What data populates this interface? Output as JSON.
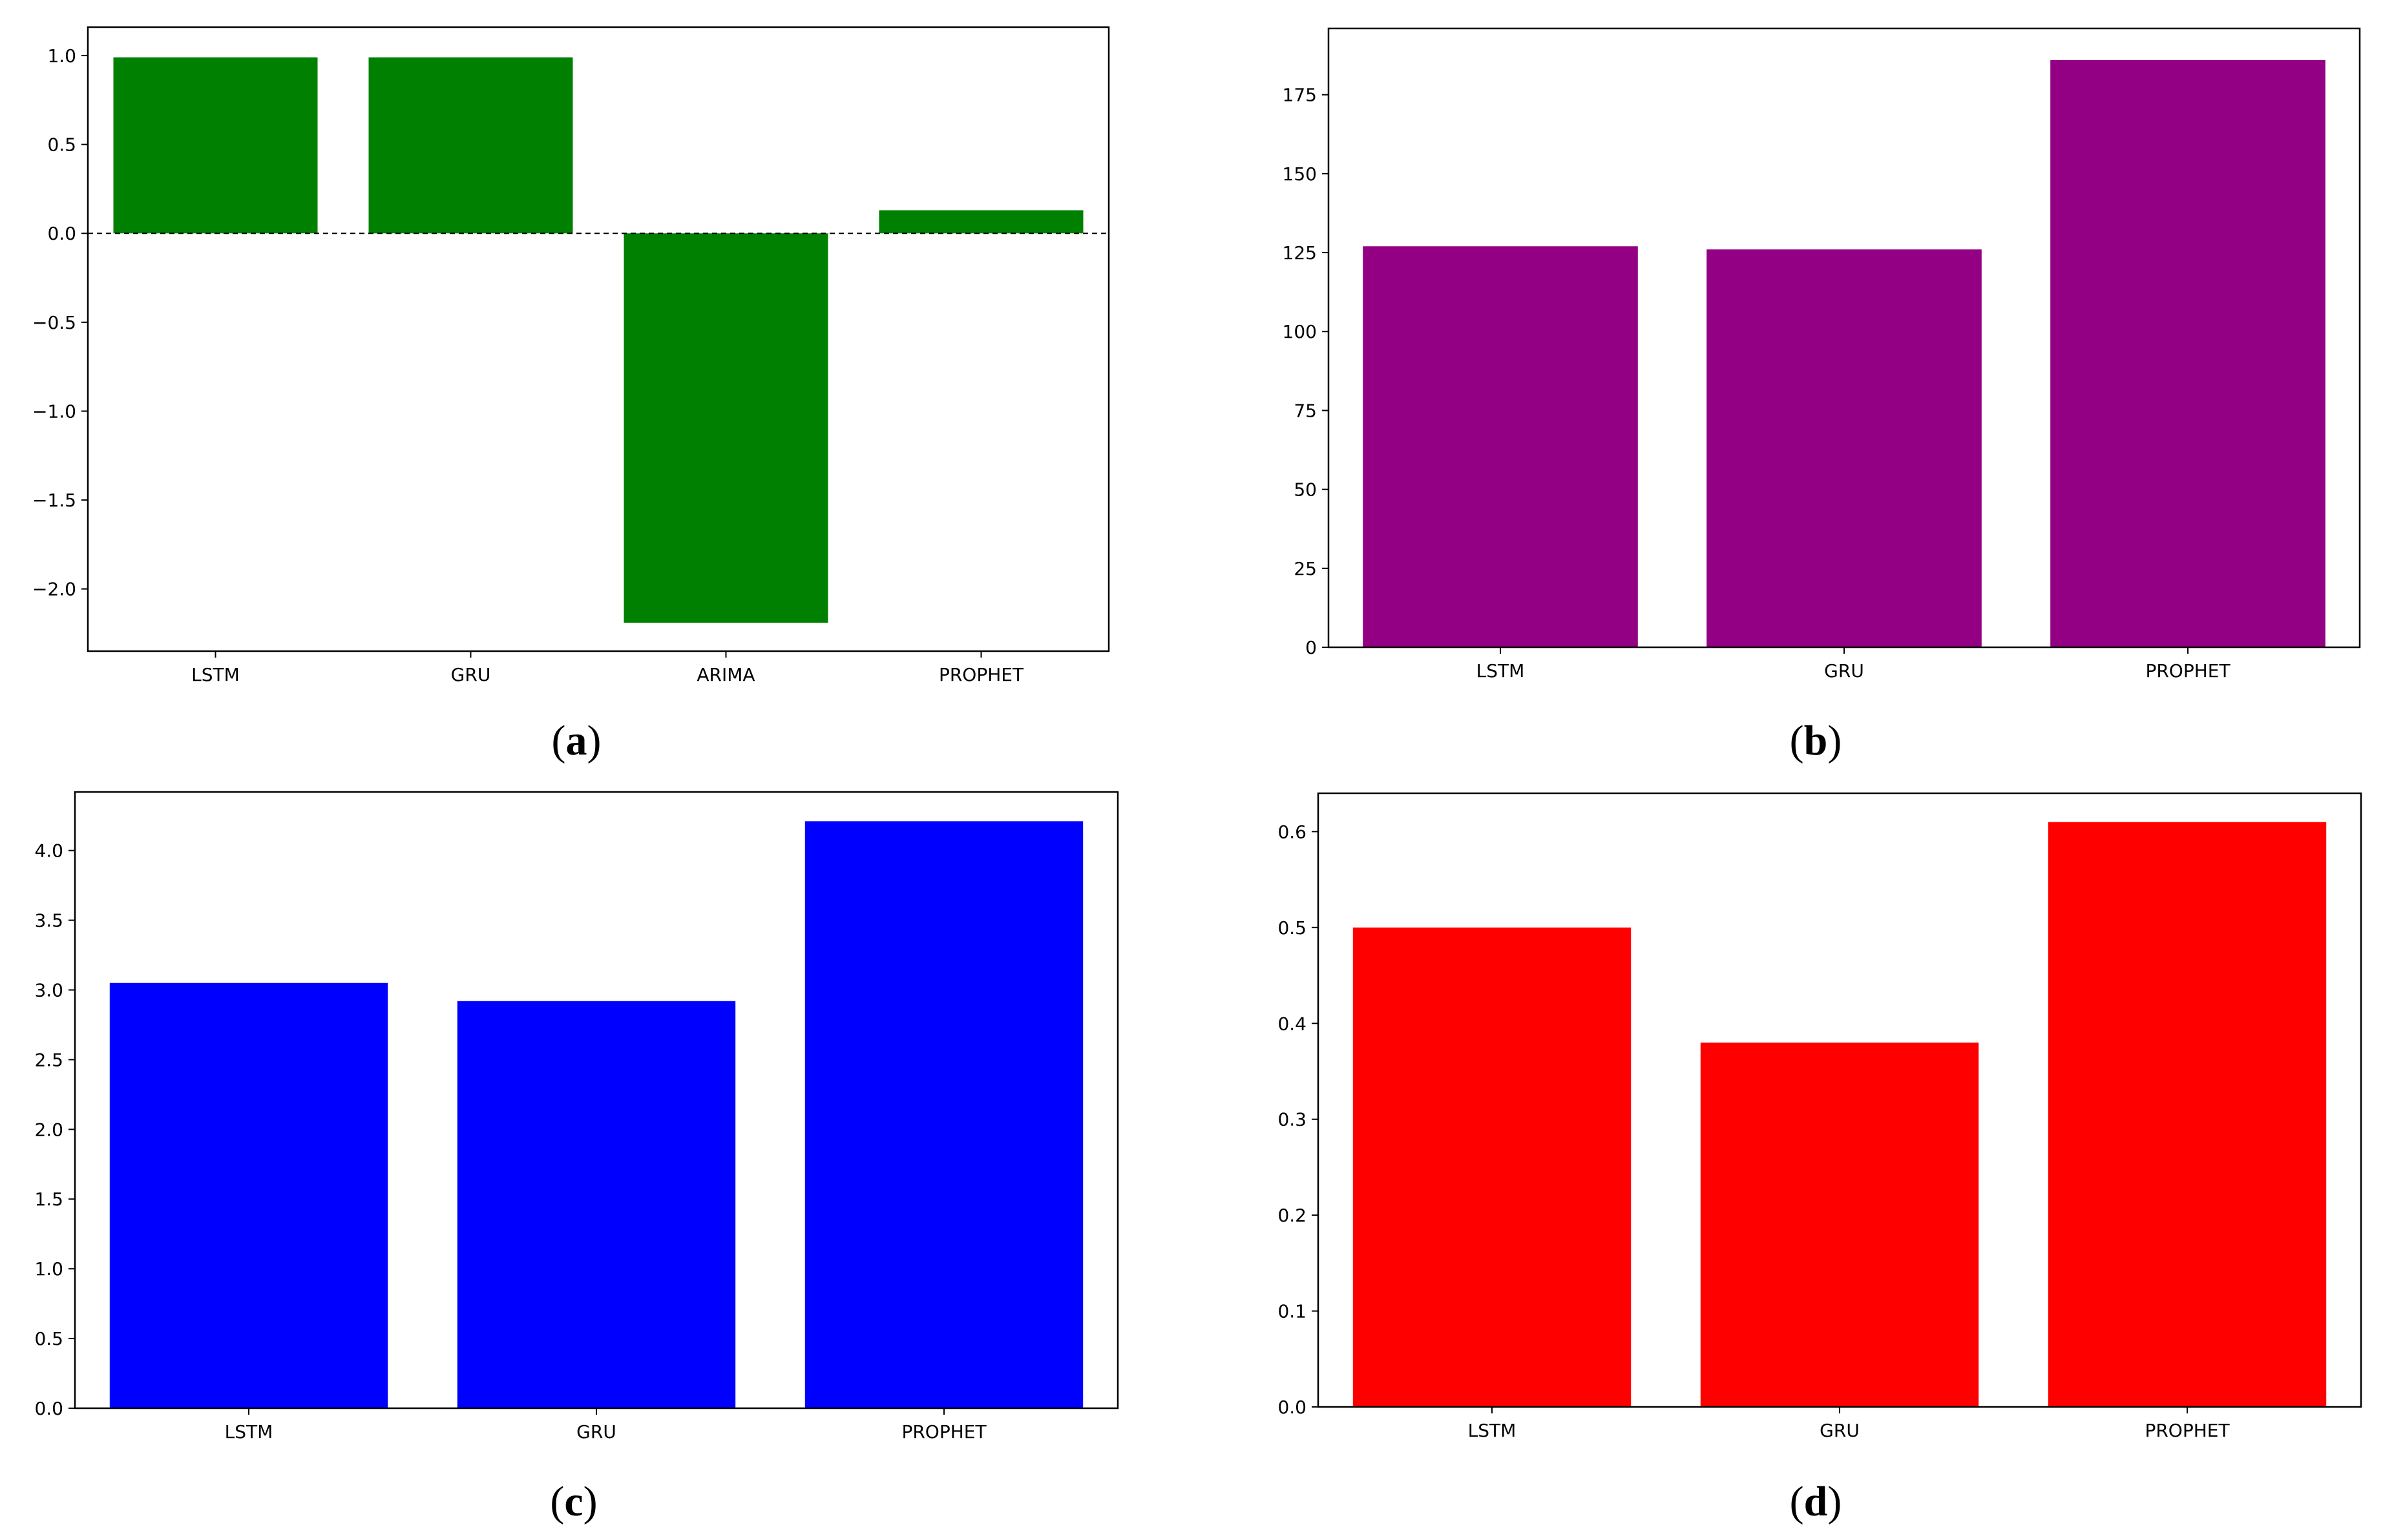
{
  "chart_data": [
    {
      "panel": "(a)",
      "caption_letter": "a",
      "type": "bar",
      "categories": [
        "LSTM",
        "GRU",
        "ARIMA",
        "PROPHET"
      ],
      "values": [
        0.99,
        0.99,
        -2.19,
        0.13
      ],
      "color": "#008000",
      "ylim": [
        -2.35,
        1.16
      ],
      "yticks": [
        1.0,
        0.5,
        0.0,
        -0.5,
        -1.0,
        -1.5,
        -2.0
      ],
      "ytick_labels": [
        "1.0",
        "0.5",
        "0.0",
        "−0.5",
        "−1.0",
        "−1.5",
        "−2.0"
      ],
      "zero_line": "dashed",
      "grid": false,
      "title": "",
      "xlabel": "",
      "ylabel": ""
    },
    {
      "panel": "(b)",
      "caption_letter": "b",
      "type": "bar",
      "categories": [
        "LSTM",
        "GRU",
        "PROPHET"
      ],
      "values": [
        127,
        126,
        186
      ],
      "color": "#940084",
      "ylim": [
        0,
        196
      ],
      "yticks": [
        0,
        25,
        50,
        75,
        100,
        125,
        150,
        175
      ],
      "ytick_labels": [
        "0",
        "25",
        "50",
        "75",
        "100",
        "125",
        "150",
        "175"
      ],
      "grid": false,
      "title": "",
      "xlabel": "",
      "ylabel": ""
    },
    {
      "panel": "(c)",
      "caption_letter": "c",
      "type": "bar",
      "categories": [
        "LSTM",
        "GRU",
        "PROPHET"
      ],
      "values": [
        3.05,
        2.92,
        4.21
      ],
      "color": "#0000ff",
      "ylim": [
        0,
        4.42
      ],
      "yticks": [
        0.0,
        0.5,
        1.0,
        1.5,
        2.0,
        2.5,
        3.0,
        3.5,
        4.0
      ],
      "ytick_labels": [
        "0.0",
        "0.5",
        "1.0",
        "1.5",
        "2.0",
        "2.5",
        "3.0",
        "3.5",
        "4.0"
      ],
      "grid": false,
      "title": "",
      "xlabel": "",
      "ylabel": ""
    },
    {
      "panel": "(d)",
      "caption_letter": "d",
      "type": "bar",
      "categories": [
        "LSTM",
        "GRU",
        "PROPHET"
      ],
      "values": [
        0.5,
        0.38,
        0.61
      ],
      "color": "#ff0000",
      "ylim": [
        0,
        0.64
      ],
      "yticks": [
        0.0,
        0.1,
        0.2,
        0.3,
        0.4,
        0.5,
        0.6
      ],
      "ytick_labels": [
        "0.0",
        "0.1",
        "0.2",
        "0.3",
        "0.4",
        "0.5",
        "0.6"
      ],
      "grid": false,
      "title": "",
      "xlabel": "",
      "ylabel": ""
    }
  ]
}
